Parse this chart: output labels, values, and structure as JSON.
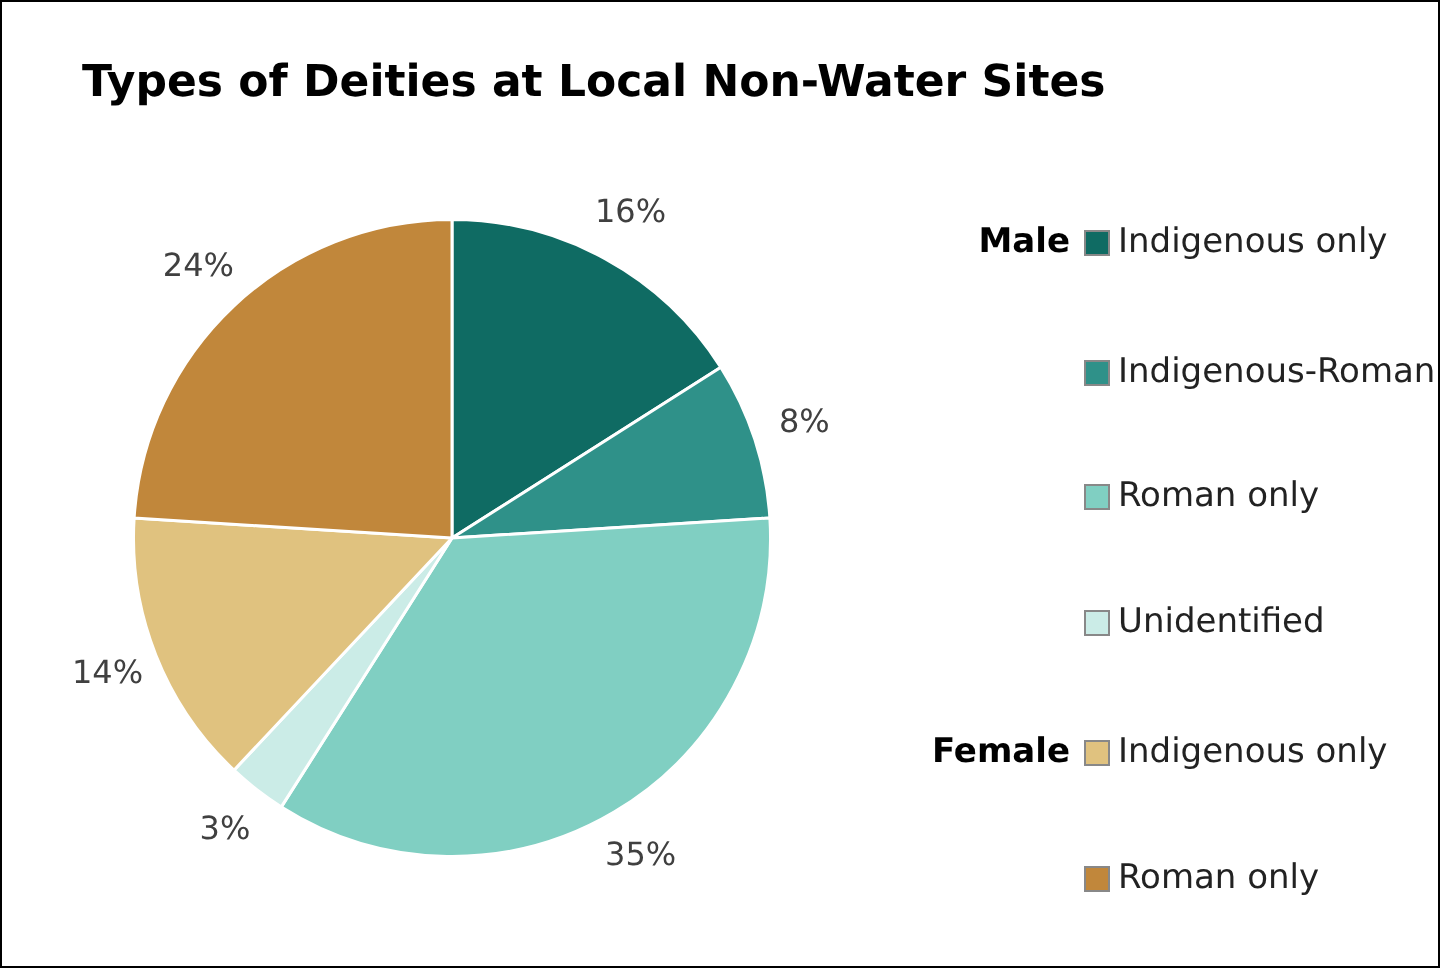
{
  "chart_data": {
    "type": "pie",
    "title": "Types of Deities at Local Non-Water Sites",
    "categories": [
      "Indigenous only",
      "Indigenous-Roman",
      "Roman only",
      "Unidentified",
      "Indigenous only",
      "Roman only"
    ],
    "values": [
      16,
      8,
      35,
      3,
      14,
      24
    ],
    "value_labels": [
      "16%",
      "8%",
      "35%",
      "3%",
      "14%",
      "24%"
    ],
    "colors": [
      "#0f6b63",
      "#2f9189",
      "#80cfc2",
      "#cbece7",
      "#e0c27f",
      "#c1873b"
    ],
    "annotations": [
      "Male",
      "Female"
    ],
    "legend": "right"
  }
}
